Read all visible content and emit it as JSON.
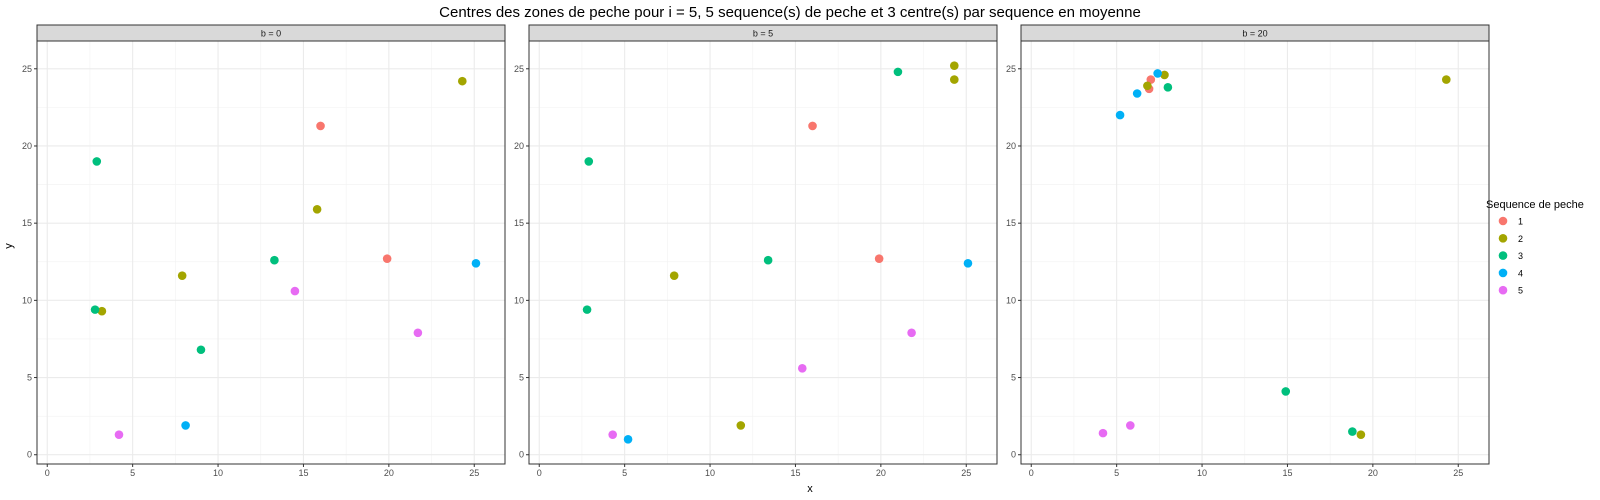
{
  "chart_data": {
    "type": "scatter",
    "title": "Centres des zones de peche pour i = 5, 5 sequence(s) de peche et 3 centre(s) par sequence en moyenne",
    "xlabel": "x",
    "ylabel": "y",
    "xlim": [
      -0.6,
      26.8
    ],
    "ylim": [
      -0.6,
      26.8
    ],
    "x_ticks": [
      0,
      5,
      10,
      15,
      20,
      25
    ],
    "y_ticks": [
      0,
      5,
      10,
      15,
      20,
      25
    ],
    "grid": true,
    "legend": {
      "title": "Sequence de peche",
      "placement": "right",
      "entries": [
        {
          "label": "1",
          "color": "#F8766D"
        },
        {
          "label": "2",
          "color": "#A3A500"
        },
        {
          "label": "3",
          "color": "#00BF7D"
        },
        {
          "label": "4",
          "color": "#00B0F6"
        },
        {
          "label": "5",
          "color": "#E76BF3"
        }
      ]
    },
    "facets": [
      {
        "label": "b = 0",
        "points": [
          {
            "x": 16.0,
            "y": 21.3,
            "seq": "1"
          },
          {
            "x": 19.9,
            "y": 12.7,
            "seq": "1"
          },
          {
            "x": 24.3,
            "y": 24.2,
            "seq": "2"
          },
          {
            "x": 15.8,
            "y": 15.9,
            "seq": "2"
          },
          {
            "x": 7.9,
            "y": 11.6,
            "seq": "2"
          },
          {
            "x": 3.2,
            "y": 9.3,
            "seq": "2"
          },
          {
            "x": 2.9,
            "y": 19.0,
            "seq": "3"
          },
          {
            "x": 2.8,
            "y": 9.4,
            "seq": "3"
          },
          {
            "x": 13.3,
            "y": 12.6,
            "seq": "3"
          },
          {
            "x": 9.0,
            "y": 6.8,
            "seq": "3"
          },
          {
            "x": 25.1,
            "y": 12.4,
            "seq": "4"
          },
          {
            "x": 8.1,
            "y": 1.9,
            "seq": "4"
          },
          {
            "x": 14.5,
            "y": 10.6,
            "seq": "5"
          },
          {
            "x": 21.7,
            "y": 7.9,
            "seq": "5"
          },
          {
            "x": 4.2,
            "y": 1.3,
            "seq": "5"
          }
        ]
      },
      {
        "label": "b = 5",
        "points": [
          {
            "x": 16.0,
            "y": 21.3,
            "seq": "1"
          },
          {
            "x": 19.9,
            "y": 12.7,
            "seq": "1"
          },
          {
            "x": 24.3,
            "y": 25.2,
            "seq": "2"
          },
          {
            "x": 24.3,
            "y": 24.3,
            "seq": "2"
          },
          {
            "x": 7.9,
            "y": 11.6,
            "seq": "2"
          },
          {
            "x": 11.8,
            "y": 1.9,
            "seq": "2"
          },
          {
            "x": 21.0,
            "y": 24.8,
            "seq": "3"
          },
          {
            "x": 2.9,
            "y": 19.0,
            "seq": "3"
          },
          {
            "x": 2.8,
            "y": 9.4,
            "seq": "3"
          },
          {
            "x": 13.4,
            "y": 12.6,
            "seq": "3"
          },
          {
            "x": 25.1,
            "y": 12.4,
            "seq": "4"
          },
          {
            "x": 5.2,
            "y": 1.0,
            "seq": "4"
          },
          {
            "x": 15.4,
            "y": 5.6,
            "seq": "5"
          },
          {
            "x": 21.8,
            "y": 7.9,
            "seq": "5"
          },
          {
            "x": 4.3,
            "y": 1.3,
            "seq": "5"
          }
        ]
      },
      {
        "label": "b = 20",
        "points": [
          {
            "x": 7.0,
            "y": 24.3,
            "seq": "1"
          },
          {
            "x": 6.9,
            "y": 23.7,
            "seq": "1"
          },
          {
            "x": 24.3,
            "y": 24.3,
            "seq": "2"
          },
          {
            "x": 7.8,
            "y": 24.6,
            "seq": "2"
          },
          {
            "x": 6.8,
            "y": 23.9,
            "seq": "2"
          },
          {
            "x": 19.3,
            "y": 1.3,
            "seq": "2"
          },
          {
            "x": 8.0,
            "y": 23.8,
            "seq": "3"
          },
          {
            "x": 14.9,
            "y": 4.1,
            "seq": "3"
          },
          {
            "x": 18.8,
            "y": 1.5,
            "seq": "3"
          },
          {
            "x": 7.4,
            "y": 24.7,
            "seq": "4"
          },
          {
            "x": 6.2,
            "y": 23.4,
            "seq": "4"
          },
          {
            "x": 5.2,
            "y": 22.0,
            "seq": "4"
          },
          {
            "x": 5.8,
            "y": 1.9,
            "seq": "5"
          },
          {
            "x": 4.2,
            "y": 1.4,
            "seq": "5"
          }
        ]
      }
    ]
  }
}
